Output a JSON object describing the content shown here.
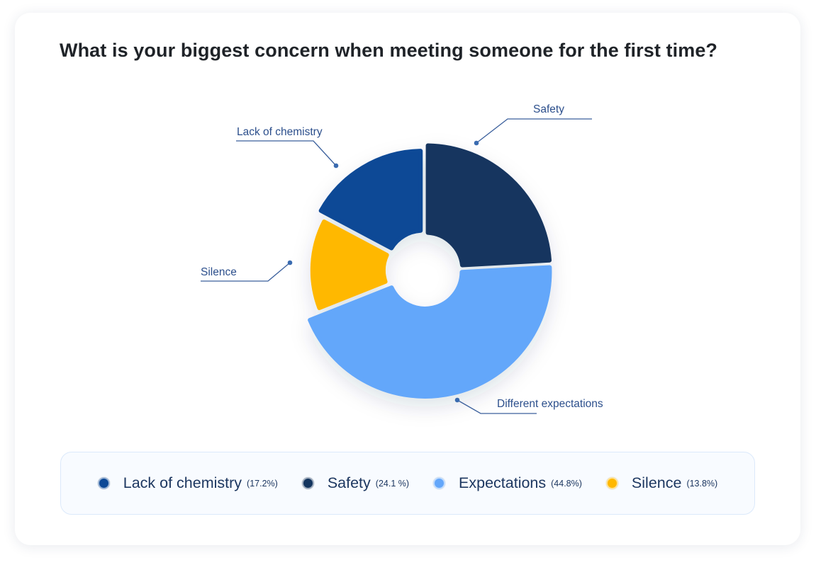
{
  "title": "What is your biggest concern when meeting someone for the first time?",
  "chart_data": {
    "type": "pie",
    "title": "What is your biggest concern when meeting someone for the first time?",
    "style": "donut",
    "slices": [
      {
        "label": "Safety",
        "legend": "Safety",
        "value": 24.1,
        "pct_label": "(24.1 %)",
        "color": "#14355f"
      },
      {
        "label": "Different expectations",
        "legend": "Expectations",
        "value": 44.8,
        "pct_label": "(44.8%)",
        "color": "#64a7fa"
      },
      {
        "label": "Silence",
        "legend": "Silence",
        "value": 13.8,
        "pct_label": "(13.8%)",
        "color": "#ffb800"
      },
      {
        "label": "Lack of chemistry",
        "legend": "Lack of chemistry",
        "value": 17.2,
        "pct_label": "(17.2%)",
        "color": "#0c4896"
      }
    ]
  },
  "legend": [
    {
      "label": "Lack of chemistry",
      "pct": "(17.2%)",
      "color": "#0c4896"
    },
    {
      "label": "Safety",
      "pct": "(24.1 %)",
      "color": "#14355f"
    },
    {
      "label": "Expectations",
      "pct": "(44.8%)",
      "color": "#64a7fa"
    },
    {
      "label": "Silence",
      "pct": "(13.8%)",
      "color": "#ffb800"
    }
  ]
}
